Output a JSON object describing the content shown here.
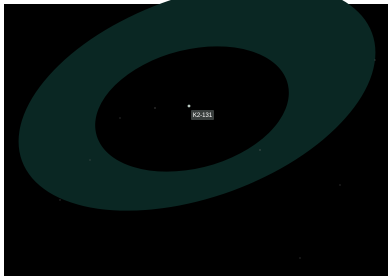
{
  "star": {
    "label": "K2-131"
  }
}
